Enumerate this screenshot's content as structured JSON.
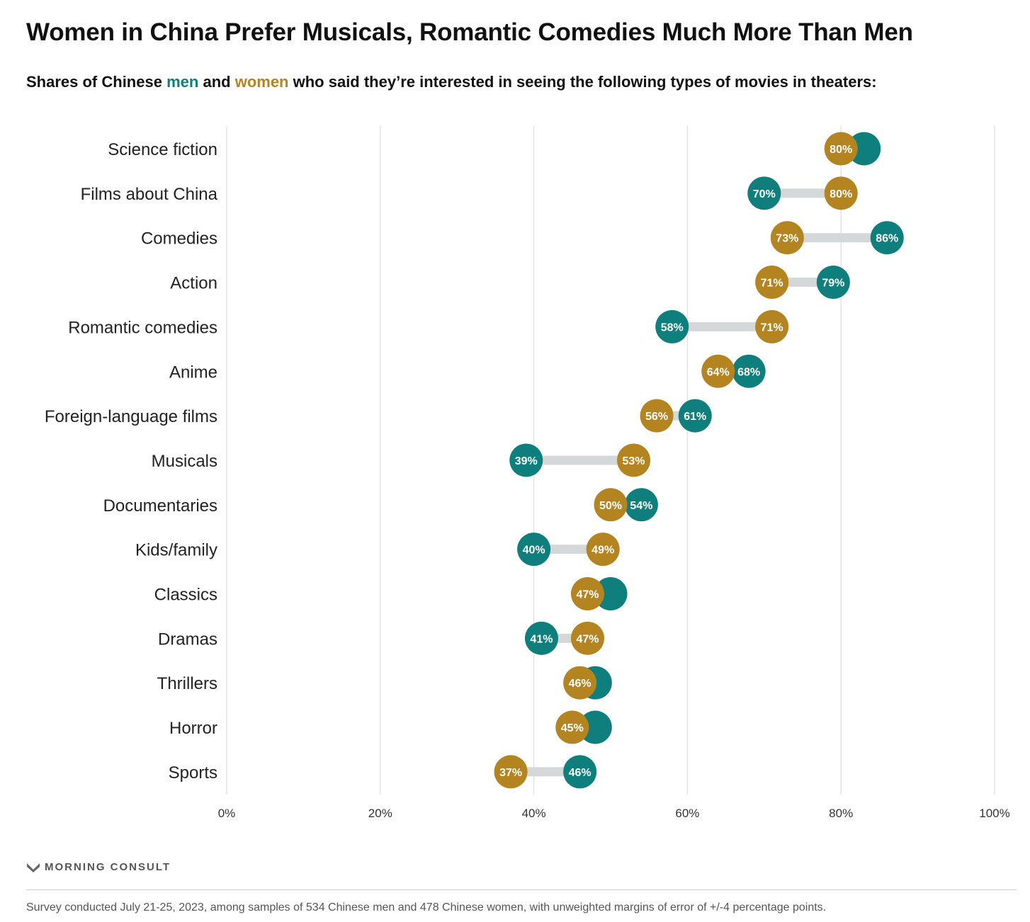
{
  "title": "Women in China Prefer Musicals, Romantic Comedies Much More Than Men",
  "subtitle": {
    "prefix": "Shares of Chinese",
    "men_label": "men",
    "and": "and",
    "women_label": "women",
    "suffix": "who said they’re interested in seeing the following types of movies in theaters:"
  },
  "colors": {
    "men": "#0e7f7c",
    "women": "#b3841f",
    "connector": "#d4d8d8",
    "grid": "#e3e3e3"
  },
  "chart_data": {
    "type": "dumbbell",
    "x_ticks": [
      "0%",
      "20%",
      "40%",
      "60%",
      "80%",
      "100%"
    ],
    "xlim": [
      0,
      100
    ],
    "series": [
      {
        "name": "men",
        "color": "#0e7f7c"
      },
      {
        "name": "women",
        "color": "#b3841f"
      }
    ],
    "categories": [
      {
        "label": "Science fiction",
        "men": 83,
        "women": 80,
        "men_label": "",
        "women_label": "80%"
      },
      {
        "label": "Films about China",
        "men": 70,
        "women": 80,
        "men_label": "70%",
        "women_label": "80%"
      },
      {
        "label": "Comedies",
        "men": 86,
        "women": 73,
        "men_label": "86%",
        "women_label": "73%"
      },
      {
        "label": "Action",
        "men": 79,
        "women": 71,
        "men_label": "79%",
        "women_label": "71%"
      },
      {
        "label": "Romantic comedies",
        "men": 58,
        "women": 71,
        "men_label": "58%",
        "women_label": "71%"
      },
      {
        "label": "Anime",
        "men": 68,
        "women": 64,
        "men_label": "68%",
        "women_label": "64%"
      },
      {
        "label": "Foreign-language films",
        "men": 61,
        "women": 56,
        "men_label": "61%",
        "women_label": "56%"
      },
      {
        "label": "Musicals",
        "men": 39,
        "women": 53,
        "men_label": "39%",
        "women_label": "53%"
      },
      {
        "label": "Documentaries",
        "men": 54,
        "women": 50,
        "men_label": "54%",
        "women_label": "50%"
      },
      {
        "label": "Kids/family",
        "men": 40,
        "women": 49,
        "men_label": "40%",
        "women_label": "49%"
      },
      {
        "label": "Classics",
        "men": 50,
        "women": 47,
        "men_label": "",
        "women_label": "47%"
      },
      {
        "label": "Dramas",
        "men": 41,
        "women": 47,
        "men_label": "41%",
        "women_label": "47%"
      },
      {
        "label": "Thrillers",
        "men": 48,
        "women": 46,
        "men_label": "",
        "women_label": "46%"
      },
      {
        "label": "Horror",
        "men": 48,
        "women": 45,
        "men_label": "",
        "women_label": "45%"
      },
      {
        "label": "Sports",
        "men": 46,
        "women": 37,
        "men_label": "46%",
        "women_label": "37%"
      }
    ]
  },
  "brand": {
    "name": "MORNING CONSULT",
    "icon": "morning-consult-logo-icon"
  },
  "footnote": "Survey conducted July 21-25, 2023, among samples of 534 Chinese men and 478 Chinese women, with unweighted margins of error of +/-4 percentage points."
}
